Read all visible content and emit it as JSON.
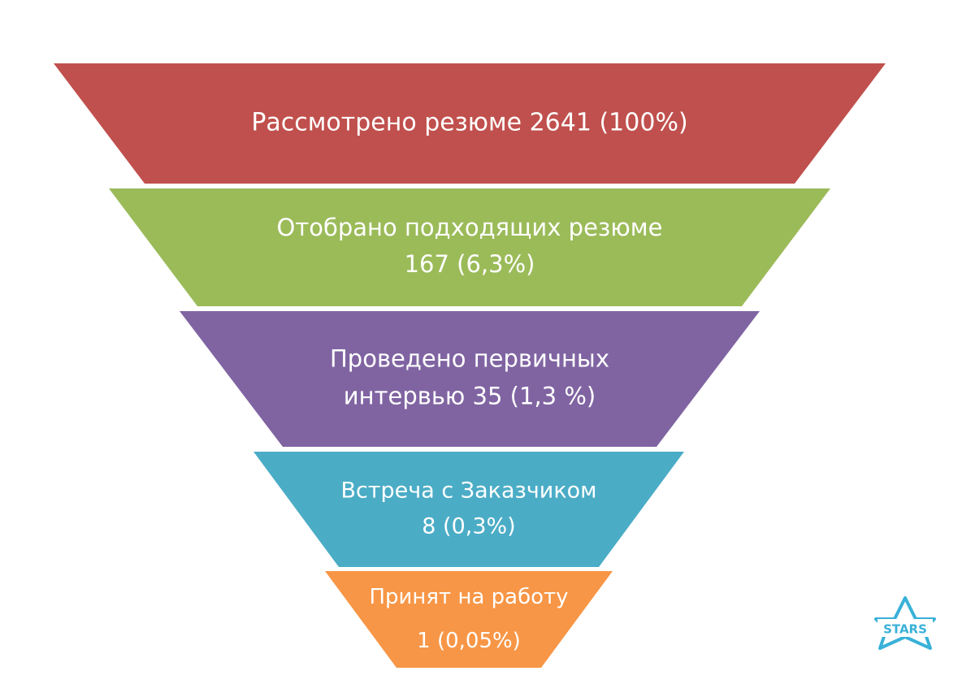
{
  "funnel": {
    "stages": [
      {
        "lines": [
          "Рассмотрено резюме 2641 (100%)"
        ],
        "value": 2641,
        "percent": 100,
        "color": "#c0504d"
      },
      {
        "lines": [
          "Отобрано подходящих резюме",
          "167 (6,3%)"
        ],
        "value": 167,
        "percent": 6.3,
        "color": "#9bbb59"
      },
      {
        "lines": [
          "Проведено первичных",
          "интервью 35 (1,3 %)"
        ],
        "value": 35,
        "percent": 1.3,
        "color": "#8064a2"
      },
      {
        "lines": [
          "Встреча  с Заказчиком",
          "8 (0,3%)"
        ],
        "value": 8,
        "percent": 0.3,
        "color": "#4bacc6"
      },
      {
        "lines": [
          "Принят  на работу",
          "1 (0,05%)"
        ],
        "value": 1,
        "percent": 0.05,
        "color": "#f79646"
      }
    ]
  },
  "watermark": {
    "text": "STARS",
    "color": "#39b1d8"
  }
}
